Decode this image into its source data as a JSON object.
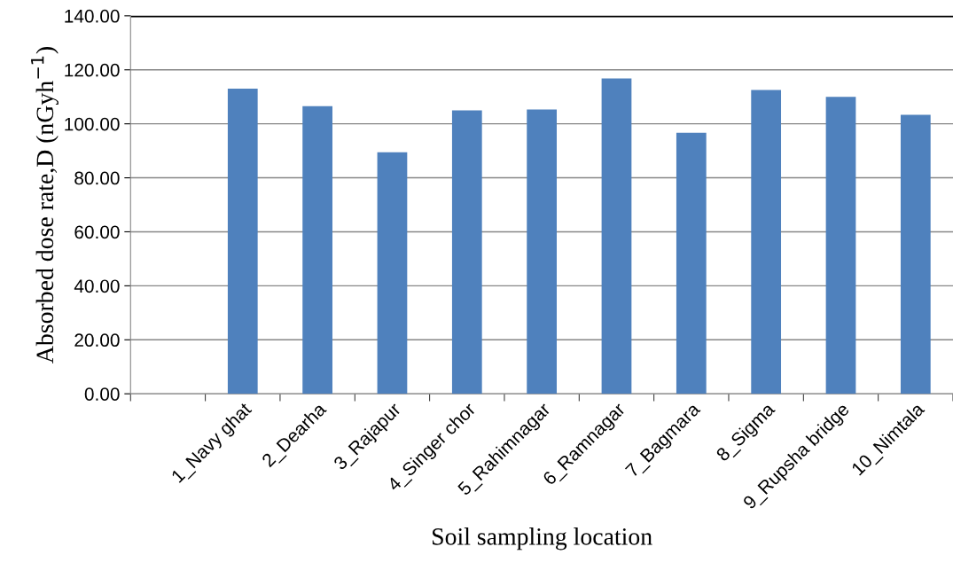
{
  "chart_data": {
    "type": "bar",
    "xlabel": "Soil sampling location",
    "ylabel": "Absorbed dose rate,D (nGyh$^{−1}$)",
    "categories": [
      null,
      "1_Navy ghat",
      "2_Dearha",
      "3_Rajapur",
      "4_Singer chor",
      "5_Rahimnagar",
      "6_Ramnagar",
      "7_Bagmara",
      "8_Sigma",
      "9_Rupsha bridge",
      "10_Nimtala"
    ],
    "values": [
      null,
      113,
      106.5,
      89.5,
      105,
      105.3,
      116.8,
      96.7,
      112.5,
      110,
      103.3
    ],
    "color": "#4f81bd",
    "ylim": [
      0,
      140
    ],
    "yticks": [
      {
        "value": 0,
        "label": "0.00"
      },
      {
        "value": 20,
        "label": "20.00"
      },
      {
        "value": 40,
        "label": "40.00"
      },
      {
        "value": 60,
        "label": "60.00"
      },
      {
        "value": 80,
        "label": "80.00"
      },
      {
        "value": 100,
        "label": "100.00"
      },
      {
        "value": 120,
        "label": "120.00"
      },
      {
        "value": 140,
        "label": "140.00"
      }
    ],
    "grid": "y",
    "legend": false
  }
}
